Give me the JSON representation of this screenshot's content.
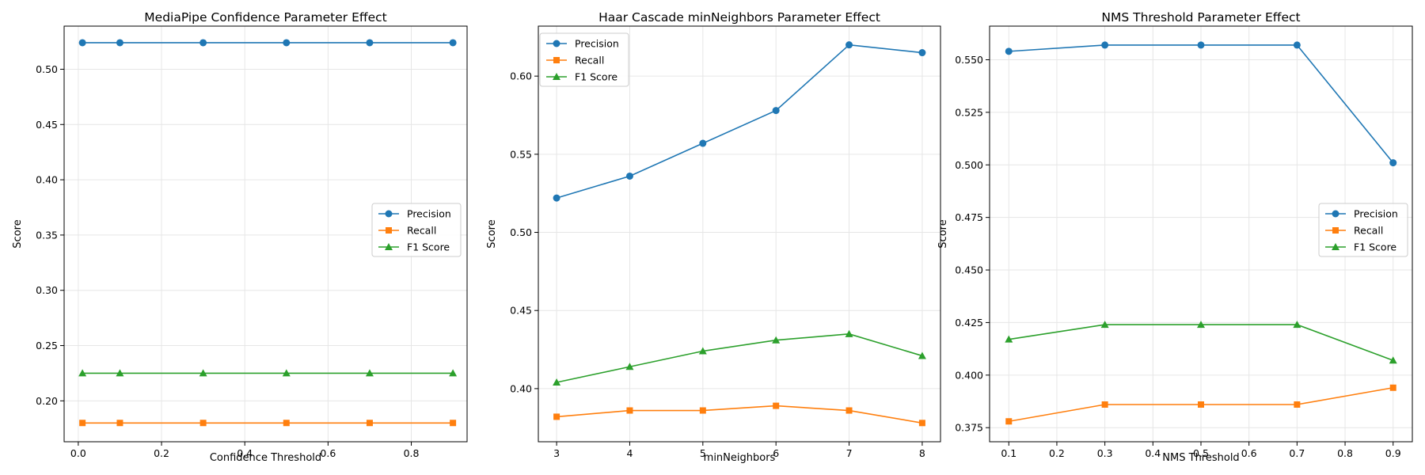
{
  "colors": {
    "precision": "#1f77b4",
    "recall": "#ff7f0e",
    "f1": "#2ca02c",
    "grid": "#e6e6e6",
    "axis": "#000000"
  },
  "chart_data": [
    {
      "type": "line",
      "title": "MediaPipe Confidence Parameter Effect",
      "xlabel": "Confidence Threshold",
      "ylabel": "Score",
      "xlim": [
        -0.034,
        0.934
      ],
      "ylim": [
        0.163,
        0.539
      ],
      "xticks": [
        0.0,
        0.2,
        0.4,
        0.6,
        0.8
      ],
      "xtick_labels": [
        "0.0",
        "0.2",
        "0.4",
        "0.6",
        "0.8"
      ],
      "yticks": [
        0.2,
        0.25,
        0.3,
        0.35,
        0.4,
        0.45,
        0.5
      ],
      "ytick_labels": [
        "0.20",
        "0.25",
        "0.30",
        "0.35",
        "0.40",
        "0.45",
        "0.50"
      ],
      "grid": true,
      "legend_position": "center-right",
      "x": [
        0.01,
        0.1,
        0.3,
        0.5,
        0.7,
        0.9
      ],
      "series": [
        {
          "name": "Precision",
          "marker": "circle",
          "values": [
            0.524,
            0.524,
            0.524,
            0.524,
            0.524,
            0.524
          ]
        },
        {
          "name": "Recall",
          "marker": "square",
          "values": [
            0.18,
            0.18,
            0.18,
            0.18,
            0.18,
            0.18
          ]
        },
        {
          "name": "F1 Score",
          "marker": "triangle",
          "values": [
            0.225,
            0.225,
            0.225,
            0.225,
            0.225,
            0.225
          ]
        }
      ]
    },
    {
      "type": "line",
      "title": "Haar Cascade minNeighbors Parameter Effect",
      "xlabel": "minNeighbors",
      "ylabel": "Score",
      "xlim": [
        2.75,
        8.25
      ],
      "ylim": [
        0.366,
        0.632
      ],
      "xticks": [
        3,
        4,
        5,
        6,
        7,
        8
      ],
      "xtick_labels": [
        "3",
        "4",
        "5",
        "6",
        "7",
        "8"
      ],
      "yticks": [
        0.4,
        0.45,
        0.5,
        0.55,
        0.6
      ],
      "ytick_labels": [
        "0.40",
        "0.45",
        "0.50",
        "0.55",
        "0.60"
      ],
      "grid": true,
      "legend_position": "upper-left",
      "x": [
        3,
        4,
        5,
        6,
        7,
        8
      ],
      "series": [
        {
          "name": "Precision",
          "marker": "circle",
          "values": [
            0.522,
            0.536,
            0.557,
            0.578,
            0.62,
            0.615
          ]
        },
        {
          "name": "Recall",
          "marker": "square",
          "values": [
            0.382,
            0.386,
            0.386,
            0.389,
            0.386,
            0.378
          ]
        },
        {
          "name": "F1 Score",
          "marker": "triangle",
          "values": [
            0.404,
            0.414,
            0.424,
            0.431,
            0.435,
            0.421
          ]
        }
      ]
    },
    {
      "type": "line",
      "title": "NMS Threshold Parameter Effect",
      "xlabel": "NMS Threshold",
      "ylabel": "Score",
      "xlim": [
        0.06,
        0.94
      ],
      "ylim": [
        0.3683,
        0.566
      ],
      "xticks": [
        0.1,
        0.2,
        0.3,
        0.4,
        0.5,
        0.6,
        0.7,
        0.8,
        0.9
      ],
      "xtick_labels": [
        "0.1",
        "0.2",
        "0.3",
        "0.4",
        "0.5",
        "0.6",
        "0.7",
        "0.8",
        "0.9"
      ],
      "yticks": [
        0.375,
        0.4,
        0.425,
        0.45,
        0.475,
        0.5,
        0.525,
        0.55
      ],
      "ytick_labels": [
        "0.375",
        "0.400",
        "0.425",
        "0.450",
        "0.475",
        "0.500",
        "0.525",
        "0.550"
      ],
      "grid": true,
      "legend_position": "center-right",
      "x": [
        0.1,
        0.3,
        0.5,
        0.7,
        0.9
      ],
      "series": [
        {
          "name": "Precision",
          "marker": "circle",
          "values": [
            0.554,
            0.557,
            0.557,
            0.557,
            0.501
          ]
        },
        {
          "name": "Recall",
          "marker": "square",
          "values": [
            0.378,
            0.386,
            0.386,
            0.386,
            0.394
          ]
        },
        {
          "name": "F1 Score",
          "marker": "triangle",
          "values": [
            0.417,
            0.424,
            0.424,
            0.424,
            0.407
          ]
        }
      ]
    }
  ]
}
